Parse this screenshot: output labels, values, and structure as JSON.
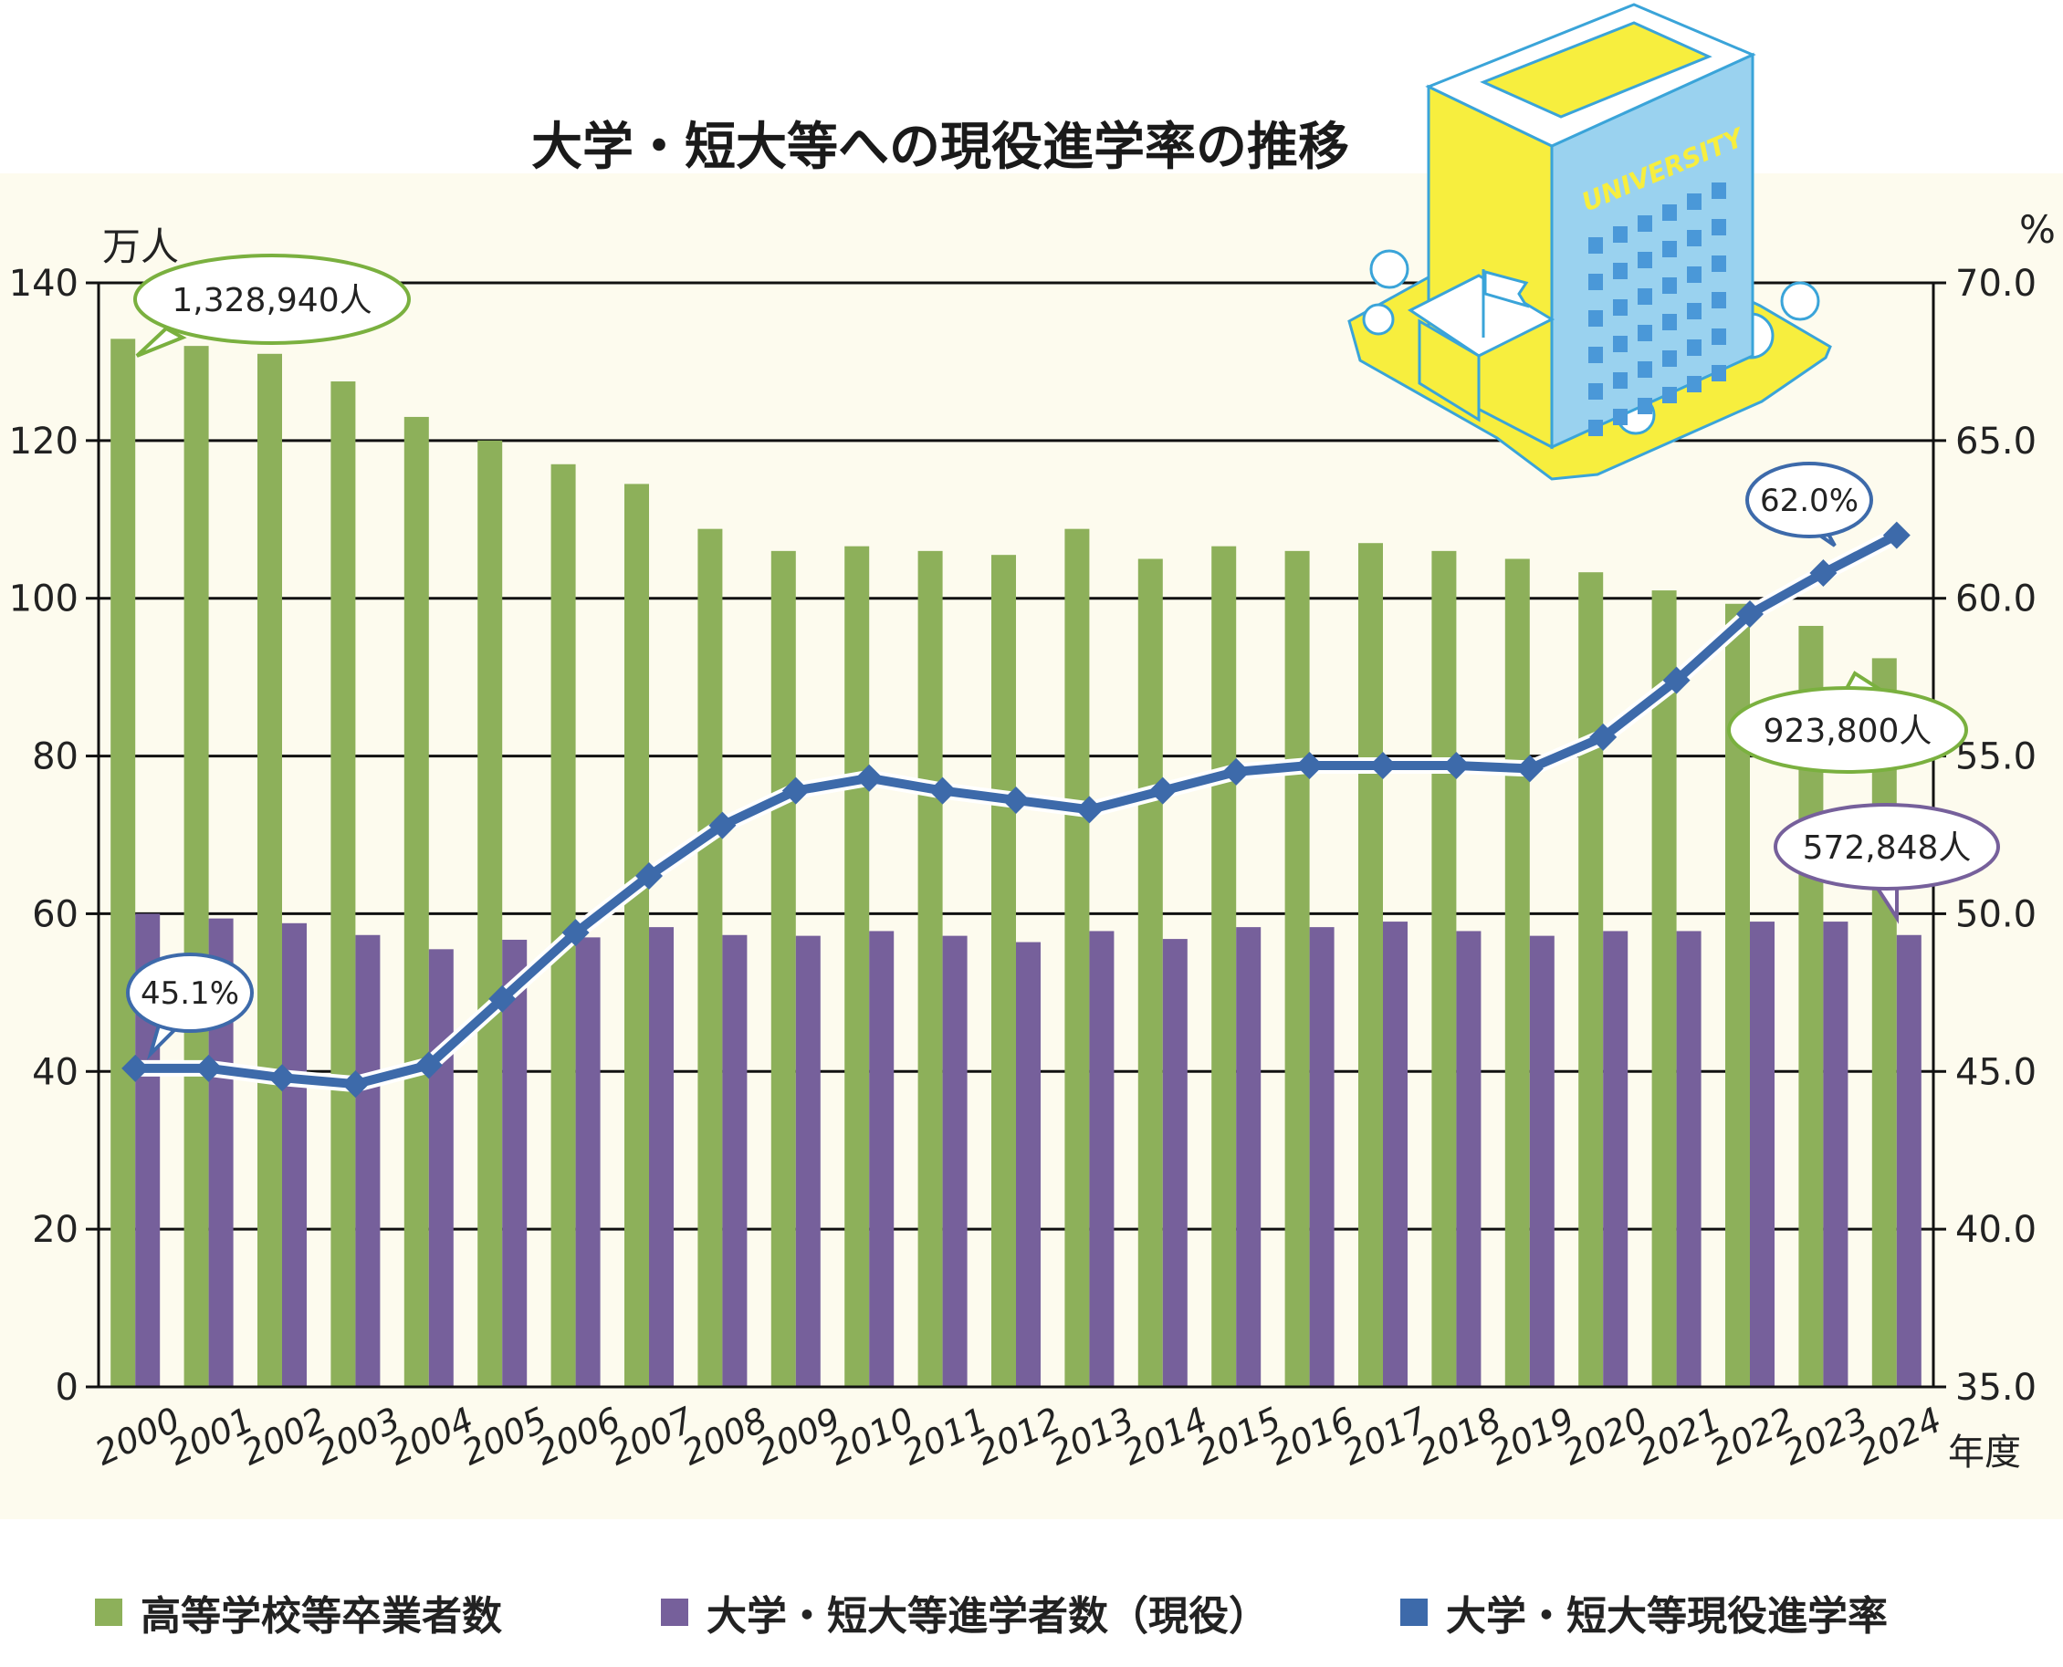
{
  "chart_data": {
    "type": "bar",
    "title": "大学・短大等への現役進学率の推移",
    "ylabel_left": "万人",
    "ylabel_right": "%",
    "xlabel": "年度",
    "ylim_left": [
      0,
      140
    ],
    "ylim_right": [
      35.0,
      70.0
    ],
    "yticks_left": [
      "0",
      "20",
      "40",
      "60",
      "80",
      "100",
      "120",
      "140"
    ],
    "yticks_right": [
      "35.0",
      "40.0",
      "45.0",
      "50.0",
      "55.0",
      "60.0",
      "65.0",
      "70.0"
    ],
    "categories": [
      "2000",
      "2001",
      "2002",
      "2003",
      "2004",
      "2005",
      "2006",
      "2007",
      "2008",
      "2009",
      "2010",
      "2011",
      "2012",
      "2013",
      "2014",
      "2015",
      "2016",
      "2017",
      "2018",
      "2019",
      "2020",
      "2021",
      "2022",
      "2023",
      "2024"
    ],
    "series": [
      {
        "name": "高等学校等卒業者数",
        "type": "bar",
        "axis": "left",
        "color": "#8db05a",
        "values": [
          132.9,
          132,
          131,
          127.5,
          123,
          120,
          117,
          114.5,
          108.8,
          106,
          106.6,
          106,
          105.5,
          108.8,
          105,
          106.6,
          106,
          107,
          106,
          105,
          103.3,
          101,
          99.3,
          96.5,
          92.4
        ]
      },
      {
        "name": "大学・短大等進学者数（現役）",
        "type": "bar",
        "axis": "left",
        "color": "#76609b",
        "values": [
          60,
          59.4,
          58.8,
          57.3,
          55.5,
          56.7,
          57,
          58.3,
          57.3,
          57.2,
          57.8,
          57.2,
          56.4,
          57.8,
          56.8,
          58.3,
          58.3,
          59,
          57.8,
          57.2,
          57.8,
          57.8,
          59,
          59,
          57.3
        ]
      },
      {
        "name": "大学・短大等現役進学率",
        "type": "line",
        "axis": "right",
        "color": "#3d6aaa",
        "values": [
          45.1,
          45.1,
          44.8,
          44.6,
          45.2,
          47.3,
          49.4,
          51.2,
          52.8,
          53.9,
          54.3,
          53.9,
          53.6,
          53.3,
          53.9,
          54.5,
          54.7,
          54.7,
          54.7,
          54.6,
          55.6,
          57.4,
          59.5,
          60.8,
          62.0
        ]
      }
    ],
    "annotations": [
      {
        "text": "1,328,940人",
        "series": "高等学校等卒業者数",
        "category": "2000"
      },
      {
        "text": "45.1%",
        "series": "大学・短大等現役進学率",
        "category": "2000"
      },
      {
        "text": "62.0%",
        "series": "大学・短大等現役進学率",
        "category": "2024"
      },
      {
        "text": "923,800人",
        "series": "高等学校等卒業者数",
        "category": "2024"
      },
      {
        "text": "572,848人",
        "series": "大学・短大等進学者数（現役）",
        "category": "2024"
      }
    ],
    "legend_position": "bottom",
    "grid": true,
    "background_color": "#fdfbee",
    "illustration_label": "UNIVERSITY"
  }
}
